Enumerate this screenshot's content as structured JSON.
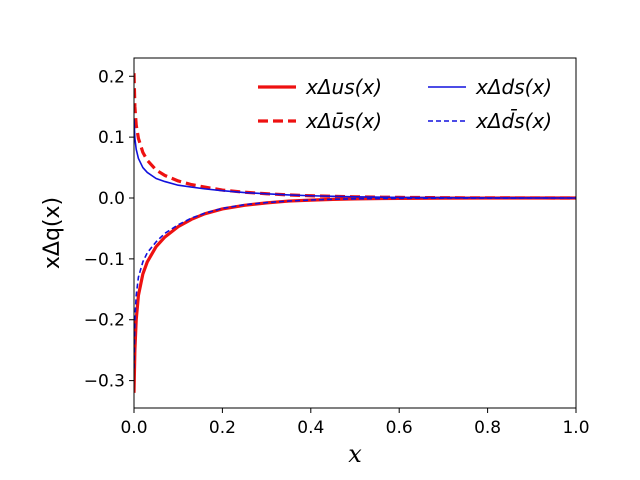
{
  "chart_data": {
    "type": "line",
    "xlabel": "x",
    "ylabel": "xΔq(x)",
    "xlim": [
      0.0,
      1.0
    ],
    "ylim": [
      -0.345,
      0.23
    ],
    "xticks": [
      0.0,
      0.2,
      0.4,
      0.6,
      0.8,
      1.0
    ],
    "xtick_labels": [
      "0.0",
      "0.2",
      "0.4",
      "0.6",
      "0.8",
      "1.0"
    ],
    "yticks": [
      -0.3,
      -0.2,
      -0.1,
      0.0,
      0.1,
      0.2
    ],
    "ytick_labels": [
      "−0.3",
      "−0.2",
      "−0.1",
      "0.0",
      "0.1",
      "0.2"
    ],
    "grid": false,
    "legend_position": "top-right",
    "series": [
      {
        "name": "xΔu_s(x)",
        "legend_text": "xΔus(x)",
        "color": "#ee1111",
        "style": "solid",
        "weight": "thick",
        "x": [
          0.0,
          0.002,
          0.005,
          0.01,
          0.02,
          0.03,
          0.05,
          0.07,
          0.1,
          0.13,
          0.16,
          0.2,
          0.25,
          0.3,
          0.35,
          0.4,
          0.45,
          0.5,
          0.6,
          0.7,
          0.8,
          0.9,
          1.0
        ],
        "y": [
          -0.32,
          -0.25,
          -0.2,
          -0.16,
          -0.125,
          -0.105,
          -0.08,
          -0.064,
          -0.047,
          -0.035,
          -0.026,
          -0.018,
          -0.012,
          -0.008,
          -0.005,
          -0.0035,
          -0.0022,
          -0.0014,
          -0.0006,
          -0.0002,
          -0.0001,
          0.0,
          0.0
        ]
      },
      {
        "name": "xΔū_s(x)",
        "legend_text": "xΔūs(x)",
        "color": "#ee1111",
        "style": "dashed",
        "weight": "thick",
        "x": [
          0.0,
          0.002,
          0.005,
          0.01,
          0.02,
          0.03,
          0.05,
          0.07,
          0.1,
          0.13,
          0.16,
          0.2,
          0.25,
          0.3,
          0.35,
          0.4,
          0.45,
          0.5,
          0.6,
          0.7,
          0.8,
          0.9,
          1.0
        ],
        "y": [
          0.205,
          0.15,
          0.12,
          0.098,
          0.075,
          0.062,
          0.046,
          0.037,
          0.028,
          0.022,
          0.018,
          0.013,
          0.0095,
          0.007,
          0.005,
          0.0037,
          0.0027,
          0.0019,
          0.001,
          0.0005,
          0.0002,
          0.0001,
          0.0
        ]
      },
      {
        "name": "xΔd_s(x)",
        "legend_text": "xΔds(x)",
        "color": "#1111dd",
        "style": "solid",
        "weight": "thin",
        "x": [
          0.0,
          0.002,
          0.005,
          0.01,
          0.02,
          0.03,
          0.05,
          0.07,
          0.1,
          0.13,
          0.16,
          0.2,
          0.25,
          0.3,
          0.35,
          0.4,
          0.45,
          0.5,
          0.6,
          0.7,
          0.8,
          0.9,
          1.0
        ],
        "y": [
          0.13,
          0.098,
          0.08,
          0.065,
          0.05,
          0.042,
          0.032,
          0.027,
          0.021,
          0.018,
          0.015,
          0.012,
          0.009,
          0.0068,
          0.005,
          0.0037,
          0.0027,
          0.0019,
          0.001,
          0.0005,
          0.0002,
          0.0001,
          0.0
        ]
      },
      {
        "name": "xΔd̄_s(x)",
        "legend_text": "xΔd̄s(x)",
        "color": "#1111dd",
        "style": "dashed",
        "weight": "thin",
        "x": [
          0.0,
          0.002,
          0.005,
          0.01,
          0.02,
          0.03,
          0.05,
          0.07,
          0.1,
          0.13,
          0.16,
          0.2,
          0.25,
          0.3,
          0.35,
          0.4,
          0.45,
          0.5,
          0.6,
          0.7,
          0.8,
          0.9,
          1.0
        ],
        "y": [
          -0.28,
          -0.2,
          -0.16,
          -0.13,
          -0.105,
          -0.09,
          -0.072,
          -0.058,
          -0.044,
          -0.033,
          -0.025,
          -0.017,
          -0.011,
          -0.0075,
          -0.005,
          -0.0033,
          -0.0021,
          -0.0013,
          -0.0005,
          -0.0002,
          -0.0001,
          0.0,
          0.0
        ]
      }
    ]
  }
}
